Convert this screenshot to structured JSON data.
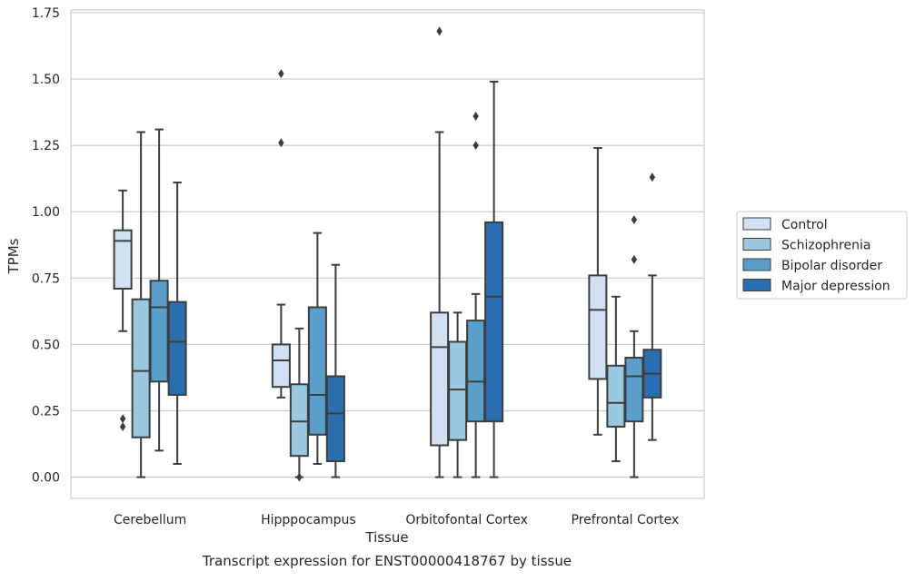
{
  "chart_data": {
    "type": "box",
    "title": "Transcript expression for ENST00000418767 by tissue",
    "xlabel": "Tissue",
    "ylabel": "TPMs",
    "ylim": [
      -0.08,
      1.76
    ],
    "yticks": [
      "0.00",
      "0.25",
      "0.50",
      "0.75",
      "1.00",
      "1.25",
      "1.50",
      "1.75"
    ],
    "grid": "horizontal",
    "legend_placement": "right",
    "categories": [
      "Cerebellum",
      "Hipppocampus",
      "Orbitofontal Cortex",
      "Prefrontal Cortex"
    ],
    "series": [
      {
        "name": "Control",
        "color": "#d0e1f2",
        "boxes": [
          {
            "whisker_low": 0.55,
            "q1": 0.71,
            "median": 0.89,
            "q3": 0.93,
            "whisker_high": 1.08,
            "outliers": [
              0.22,
              0.19
            ]
          },
          {
            "whisker_low": 0.3,
            "q1": 0.34,
            "median": 0.44,
            "q3": 0.5,
            "whisker_high": 0.65,
            "outliers": [
              1.52,
              1.26
            ]
          },
          {
            "whisker_low": 0.0,
            "q1": 0.12,
            "median": 0.49,
            "q3": 0.62,
            "whisker_high": 1.3,
            "outliers": [
              1.68
            ]
          },
          {
            "whisker_low": 0.16,
            "q1": 0.37,
            "median": 0.63,
            "q3": 0.76,
            "whisker_high": 1.24,
            "outliers": []
          }
        ]
      },
      {
        "name": "Schizophrenia",
        "color": "#9ac8e0",
        "boxes": [
          {
            "whisker_low": 0.0,
            "q1": 0.15,
            "median": 0.4,
            "q3": 0.67,
            "whisker_high": 1.3,
            "outliers": []
          },
          {
            "whisker_low": 0.0,
            "q1": 0.08,
            "median": 0.21,
            "q3": 0.35,
            "whisker_high": 0.56,
            "outliers": [
              0.0
            ]
          },
          {
            "whisker_low": 0.0,
            "q1": 0.14,
            "median": 0.33,
            "q3": 0.51,
            "whisker_high": 0.62,
            "outliers": []
          },
          {
            "whisker_low": 0.06,
            "q1": 0.19,
            "median": 0.28,
            "q3": 0.42,
            "whisker_high": 0.68,
            "outliers": []
          }
        ]
      },
      {
        "name": "Bipolar disorder",
        "color": "#5a9fcc",
        "boxes": [
          {
            "whisker_low": 0.1,
            "q1": 0.36,
            "median": 0.64,
            "q3": 0.74,
            "whisker_high": 1.31,
            "outliers": []
          },
          {
            "whisker_low": 0.05,
            "q1": 0.16,
            "median": 0.31,
            "q3": 0.64,
            "whisker_high": 0.92,
            "outliers": []
          },
          {
            "whisker_low": 0.0,
            "q1": 0.21,
            "median": 0.36,
            "q3": 0.59,
            "whisker_high": 0.69,
            "outliers": [
              1.36,
              1.25
            ]
          },
          {
            "whisker_low": 0.0,
            "q1": 0.21,
            "median": 0.38,
            "q3": 0.45,
            "whisker_high": 0.55,
            "outliers": [
              0.97,
              0.82
            ]
          }
        ]
      },
      {
        "name": "Major depression",
        "color": "#2c6fb0",
        "boxes": [
          {
            "whisker_low": 0.05,
            "q1": 0.31,
            "median": 0.51,
            "q3": 0.66,
            "whisker_high": 1.11,
            "outliers": []
          },
          {
            "whisker_low": 0.0,
            "q1": 0.06,
            "median": 0.24,
            "q3": 0.38,
            "whisker_high": 0.8,
            "outliers": []
          },
          {
            "whisker_low": 0.0,
            "q1": 0.21,
            "median": 0.68,
            "q3": 0.96,
            "whisker_high": 1.49,
            "outliers": []
          },
          {
            "whisker_low": 0.14,
            "q1": 0.3,
            "median": 0.39,
            "q3": 0.48,
            "whisker_high": 0.76,
            "outliers": [
              1.13
            ]
          }
        ]
      }
    ]
  }
}
